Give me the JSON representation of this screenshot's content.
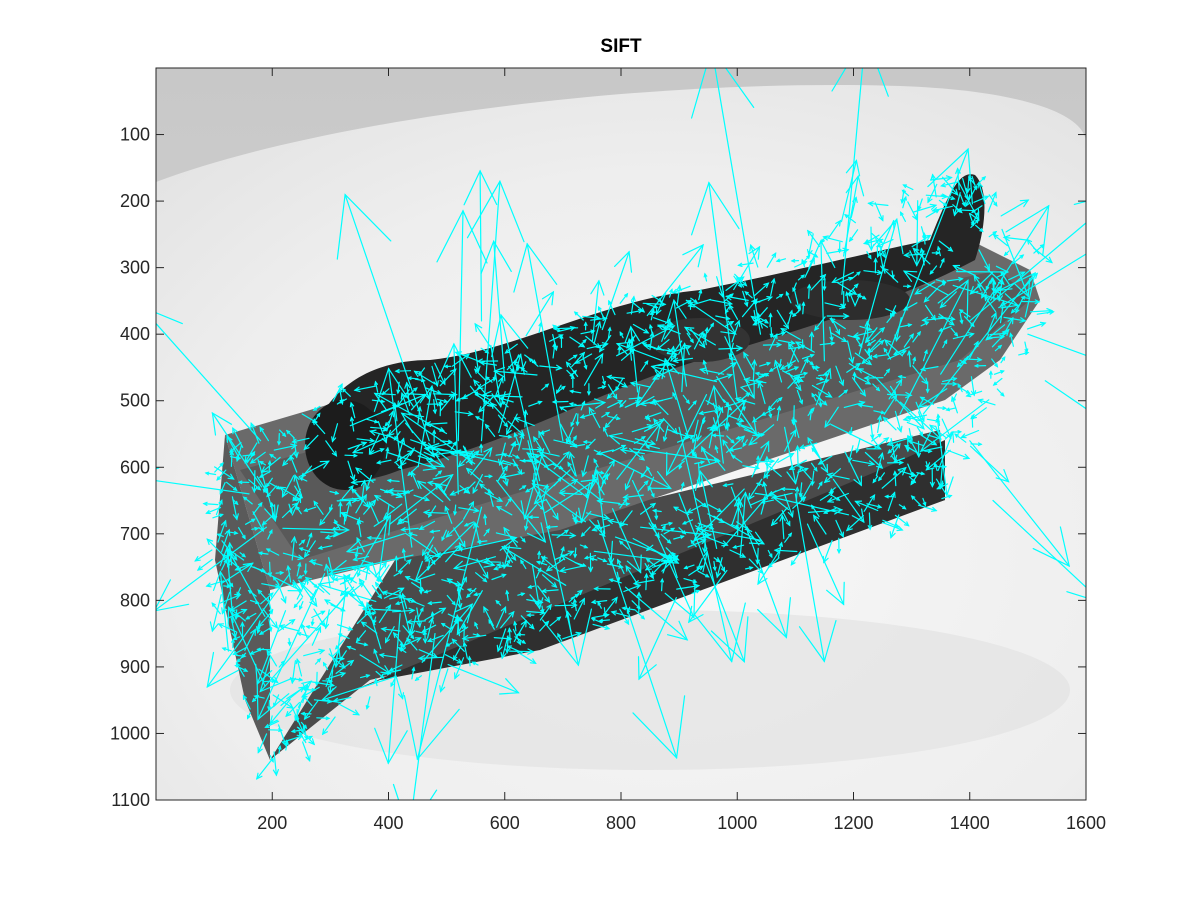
{
  "figure": {
    "title": "SIFT",
    "image_description_colors": {
      "background_light": "#f1f1f1",
      "object_dark": "#3a3a3a",
      "keypoint_arrow": "#00ffff"
    },
    "x_axis": {
      "range": [
        0,
        1600
      ],
      "ticks": [
        200,
        400,
        600,
        800,
        1000,
        1200,
        1400,
        1600
      ],
      "tick_labels": [
        "200",
        "400",
        "600",
        "800",
        "1000",
        "1200",
        "1400",
        "1600"
      ]
    },
    "y_axis": {
      "range": [
        0,
        1100
      ],
      "reversed": true,
      "ticks": [
        100,
        200,
        300,
        400,
        500,
        600,
        700,
        800,
        900,
        1000,
        1100
      ],
      "tick_labels": [
        "100",
        "200",
        "300",
        "400",
        "500",
        "600",
        "700",
        "800",
        "900",
        "1000",
        "1100"
      ]
    },
    "keypoint_icon": "arrow-icon"
  }
}
